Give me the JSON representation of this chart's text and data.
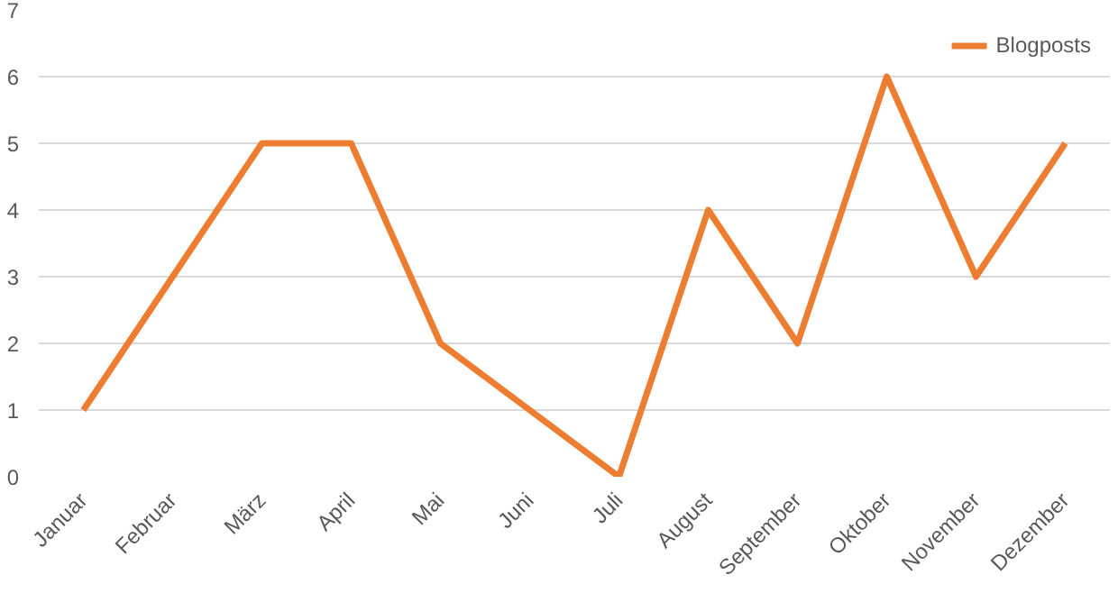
{
  "chart_data": {
    "type": "line",
    "categories": [
      "Januar",
      "Februar",
      "März",
      "April",
      "Mai",
      "Juni",
      "Juli",
      "August",
      "September",
      "Oktober",
      "November",
      "Dezember"
    ],
    "series": [
      {
        "name": "Blogposts",
        "color": "#ed7d31",
        "values": [
          1,
          3,
          5,
          5,
          2,
          1,
          0,
          4,
          2,
          6,
          3,
          5
        ]
      }
    ],
    "ylim": [
      0,
      7
    ],
    "yticks": [
      0,
      1,
      2,
      3,
      4,
      5,
      6,
      7
    ],
    "grid": "y",
    "legend": "top right",
    "marker": "none",
    "line_style": "solid"
  }
}
